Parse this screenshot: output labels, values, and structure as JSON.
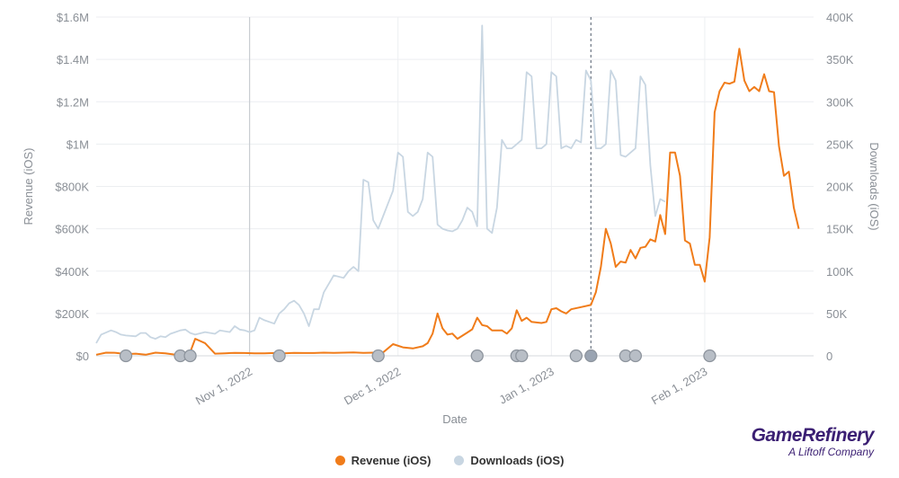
{
  "chart_data": {
    "type": "line",
    "xlabel": "Date",
    "ylabel_left": "Revenue (iOS)",
    "ylabel_right": "Downloads (iOS)",
    "x_ticks": [
      "Nov 1, 2022",
      "Dec 1, 2022",
      "Jan 1, 2023",
      "Feb 1, 2023"
    ],
    "x_tick_days": [
      31,
      61,
      92,
      123
    ],
    "xlim_days": [
      0,
      145
    ],
    "x_start": "Oct 2, 2022",
    "y_left_ticks": [
      "$0",
      "$200K",
      "$400K",
      "$600K",
      "$800K",
      "$1M",
      "$1.2M",
      "$1.4M",
      "$1.6M"
    ],
    "y_left_lim": [
      0,
      1600000
    ],
    "y_right_ticks": [
      "0",
      "50K",
      "100K",
      "150K",
      "200K",
      "250K",
      "300K",
      "350K",
      "400K"
    ],
    "y_right_lim": [
      0,
      400000
    ],
    "series": [
      {
        "name": "Revenue (iOS)",
        "axis": "left",
        "color": "#f07c1a",
        "points": [
          [
            0,
            5000
          ],
          [
            2,
            15000
          ],
          [
            4,
            14000
          ],
          [
            6,
            8000
          ],
          [
            8,
            10000
          ],
          [
            10,
            5000
          ],
          [
            12,
            15000
          ],
          [
            14,
            12000
          ],
          [
            16,
            5000
          ],
          [
            18,
            10000
          ],
          [
            19,
            18000
          ],
          [
            20,
            80000
          ],
          [
            22,
            60000
          ],
          [
            24,
            10000
          ],
          [
            26,
            12000
          ],
          [
            28,
            14000
          ],
          [
            30,
            13000
          ],
          [
            32,
            12000
          ],
          [
            34,
            12000
          ],
          [
            36,
            13000
          ],
          [
            38,
            12000
          ],
          [
            40,
            14000
          ],
          [
            42,
            13000
          ],
          [
            44,
            13000
          ],
          [
            46,
            15000
          ],
          [
            48,
            14000
          ],
          [
            50,
            15000
          ],
          [
            52,
            16000
          ],
          [
            54,
            14000
          ],
          [
            56,
            15000
          ],
          [
            58,
            16000
          ],
          [
            60,
            55000
          ],
          [
            62,
            40000
          ],
          [
            64,
            35000
          ],
          [
            66,
            45000
          ],
          [
            67,
            60000
          ],
          [
            68,
            105000
          ],
          [
            69,
            200000
          ],
          [
            70,
            130000
          ],
          [
            71,
            100000
          ],
          [
            72,
            105000
          ],
          [
            73,
            80000
          ],
          [
            75,
            110000
          ],
          [
            76,
            125000
          ],
          [
            77,
            180000
          ],
          [
            78,
            145000
          ],
          [
            79,
            140000
          ],
          [
            80,
            120000
          ],
          [
            82,
            120000
          ],
          [
            83,
            105000
          ],
          [
            84,
            130000
          ],
          [
            85,
            215000
          ],
          [
            86,
            165000
          ],
          [
            87,
            180000
          ],
          [
            88,
            160000
          ],
          [
            90,
            155000
          ],
          [
            91,
            160000
          ],
          [
            92,
            220000
          ],
          [
            93,
            225000
          ],
          [
            94,
            210000
          ],
          [
            95,
            200000
          ],
          [
            96,
            220000
          ],
          [
            98,
            230000
          ],
          [
            100,
            240000
          ],
          [
            101,
            300000
          ],
          [
            102,
            420000
          ],
          [
            103,
            600000
          ],
          [
            104,
            530000
          ],
          [
            105,
            420000
          ],
          [
            106,
            445000
          ],
          [
            107,
            440000
          ],
          [
            108,
            500000
          ],
          [
            109,
            460000
          ],
          [
            110,
            510000
          ],
          [
            111,
            515000
          ],
          [
            112,
            550000
          ],
          [
            113,
            540000
          ],
          [
            114,
            665000
          ],
          [
            115,
            575000
          ],
          [
            116,
            960000
          ],
          [
            117,
            960000
          ],
          [
            118,
            850000
          ],
          [
            119,
            545000
          ],
          [
            120,
            530000
          ],
          [
            121,
            430000
          ],
          [
            122,
            430000
          ],
          [
            123,
            350000
          ],
          [
            124,
            560000
          ],
          [
            125,
            1150000
          ],
          [
            126,
            1250000
          ],
          [
            127,
            1290000
          ],
          [
            128,
            1285000
          ],
          [
            129,
            1295000
          ],
          [
            130,
            1450000
          ],
          [
            131,
            1300000
          ],
          [
            132,
            1250000
          ],
          [
            133,
            1270000
          ],
          [
            134,
            1250000
          ],
          [
            135,
            1330000
          ],
          [
            136,
            1250000
          ],
          [
            137,
            1245000
          ],
          [
            138,
            990000
          ],
          [
            139,
            850000
          ],
          [
            140,
            870000
          ],
          [
            141,
            700000
          ],
          [
            142,
            600000
          ]
        ]
      },
      {
        "name": "Downloads (iOS)",
        "axis": "right",
        "color": "#c8d6e2",
        "points": [
          [
            0,
            15000
          ],
          [
            1,
            25000
          ],
          [
            3,
            30000
          ],
          [
            4,
            28000
          ],
          [
            5,
            25000
          ],
          [
            6,
            24000
          ],
          [
            8,
            23000
          ],
          [
            9,
            27000
          ],
          [
            10,
            27000
          ],
          [
            11,
            22000
          ],
          [
            12,
            20000
          ],
          [
            13,
            23000
          ],
          [
            14,
            22000
          ],
          [
            15,
            26000
          ],
          [
            16,
            28000
          ],
          [
            17,
            30000
          ],
          [
            18,
            31000
          ],
          [
            19,
            27000
          ],
          [
            20,
            25000
          ],
          [
            22,
            28000
          ],
          [
            24,
            26000
          ],
          [
            25,
            30000
          ],
          [
            27,
            28000
          ],
          [
            28,
            35000
          ],
          [
            29,
            31000
          ],
          [
            30,
            30000
          ],
          [
            31,
            28000
          ],
          [
            32,
            30000
          ],
          [
            33,
            45000
          ],
          [
            34,
            42000
          ],
          [
            36,
            38000
          ],
          [
            37,
            50000
          ],
          [
            38,
            55000
          ],
          [
            39,
            62000
          ],
          [
            40,
            65000
          ],
          [
            41,
            60000
          ],
          [
            42,
            50000
          ],
          [
            43,
            35000
          ],
          [
            44,
            55000
          ],
          [
            45,
            55000
          ],
          [
            46,
            75000
          ],
          [
            47,
            85000
          ],
          [
            48,
            95000
          ],
          [
            50,
            92000
          ],
          [
            51,
            100000
          ],
          [
            52,
            105000
          ],
          [
            53,
            100000
          ],
          [
            54,
            208000
          ],
          [
            55,
            205000
          ],
          [
            56,
            160000
          ],
          [
            57,
            150000
          ],
          [
            58,
            165000
          ],
          [
            59,
            180000
          ],
          [
            60,
            195000
          ],
          [
            61,
            240000
          ],
          [
            62,
            235000
          ],
          [
            63,
            170000
          ],
          [
            64,
            165000
          ],
          [
            65,
            170000
          ],
          [
            66,
            185000
          ],
          [
            67,
            240000
          ],
          [
            68,
            235000
          ],
          [
            69,
            155000
          ],
          [
            70,
            150000
          ],
          [
            71,
            148000
          ],
          [
            72,
            147000
          ],
          [
            73,
            150000
          ],
          [
            74,
            160000
          ],
          [
            75,
            175000
          ],
          [
            76,
            170000
          ],
          [
            77,
            153000
          ],
          [
            78,
            390000
          ],
          [
            79,
            150000
          ],
          [
            80,
            145000
          ],
          [
            81,
            175000
          ],
          [
            82,
            255000
          ],
          [
            83,
            245000
          ],
          [
            84,
            245000
          ],
          [
            85,
            250000
          ],
          [
            86,
            255000
          ],
          [
            87,
            335000
          ],
          [
            88,
            330000
          ],
          [
            89,
            245000
          ],
          [
            90,
            245000
          ],
          [
            91,
            250000
          ],
          [
            92,
            335000
          ],
          [
            93,
            330000
          ],
          [
            94,
            245000
          ],
          [
            95,
            248000
          ],
          [
            96,
            245000
          ],
          [
            97,
            255000
          ],
          [
            98,
            252000
          ],
          [
            99,
            337000
          ],
          [
            100,
            325000
          ],
          [
            101,
            245000
          ],
          [
            102,
            245000
          ],
          [
            103,
            250000
          ],
          [
            104,
            337000
          ],
          [
            105,
            325000
          ],
          [
            106,
            237000
          ],
          [
            107,
            235000
          ],
          [
            108,
            240000
          ],
          [
            109,
            245000
          ],
          [
            110,
            330000
          ],
          [
            111,
            320000
          ],
          [
            112,
            225000
          ],
          [
            113,
            165000
          ],
          [
            114,
            185000
          ],
          [
            115,
            182000
          ]
        ]
      }
    ],
    "markers": {
      "color": "#b8bec6",
      "highlight_color": "#9aa4b2",
      "days": [
        6,
        17,
        19,
        37,
        57,
        77,
        85,
        86,
        97,
        100,
        107,
        109,
        124
      ],
      "highlight_day": 100
    },
    "vlines": {
      "solid_day": 31,
      "dashed_day": 100
    },
    "grid": true,
    "legend_position": "bottom-center"
  },
  "legend": {
    "revenue_label": "Revenue (iOS)",
    "downloads_label": "Downloads (iOS)",
    "revenue_color": "#f07c1a",
    "downloads_color": "#c8d6e2"
  },
  "brand": {
    "name": "GameRefinery",
    "tagline": "A Liftoff Company"
  }
}
